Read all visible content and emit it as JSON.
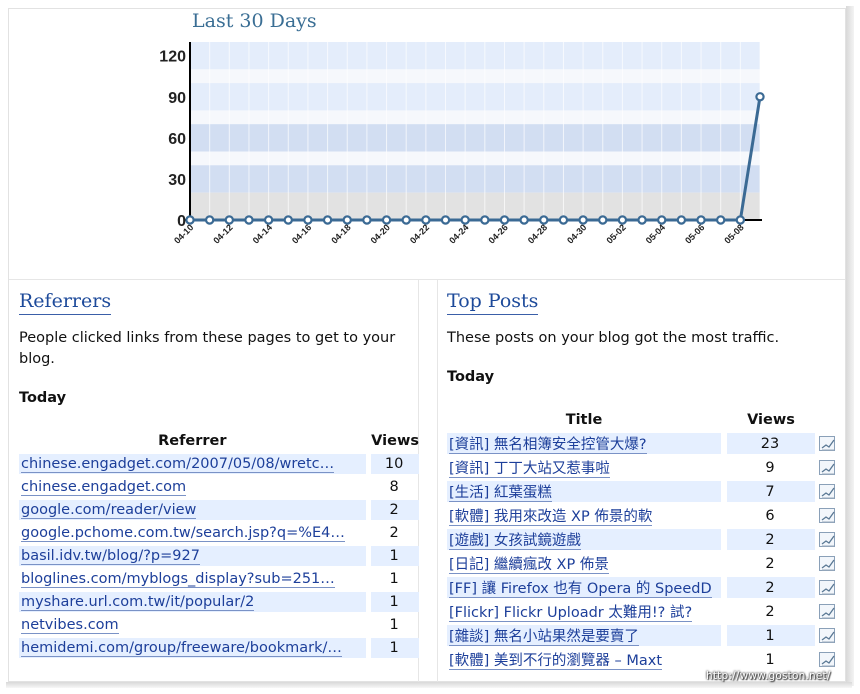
{
  "chart_data": {
    "type": "line",
    "title": "Last 30 Days",
    "xlabel": "",
    "ylabel": "",
    "ylim": [
      0,
      130
    ],
    "yticks": [
      0,
      30,
      60,
      90,
      120
    ],
    "x_tick_labels": [
      "04-10",
      "04-12",
      "04-14",
      "04-16",
      "04-18",
      "04-20",
      "04-22",
      "04-24",
      "04-26",
      "04-28",
      "04-30",
      "05-02",
      "05-04",
      "05-06",
      "05-08"
    ],
    "x": [
      "04-10",
      "04-11",
      "04-12",
      "04-13",
      "04-14",
      "04-15",
      "04-16",
      "04-17",
      "04-18",
      "04-19",
      "04-20",
      "04-21",
      "04-22",
      "04-23",
      "04-24",
      "04-25",
      "04-26",
      "04-27",
      "04-28",
      "04-29",
      "04-30",
      "05-01",
      "05-02",
      "05-03",
      "05-04",
      "05-05",
      "05-06",
      "05-07",
      "05-08",
      "05-09"
    ],
    "values": [
      0,
      0,
      0,
      0,
      0,
      0,
      0,
      0,
      0,
      0,
      0,
      0,
      0,
      0,
      0,
      0,
      0,
      0,
      0,
      0,
      0,
      0,
      0,
      0,
      0,
      0,
      0,
      0,
      0,
      90
    ],
    "grid": true,
    "colors": {
      "line": "#3b6a94",
      "marker_fill": "#ffffff",
      "band_light": "#e4edfb",
      "band_dark": "#d2def2",
      "band_white": "#f6f8fc"
    }
  },
  "referrers": {
    "title": "Referrers",
    "description": "People clicked links from these pages to get to your blog.",
    "period": "Today",
    "columns": {
      "referrer": "Referrer",
      "views": "Views"
    },
    "rows": [
      {
        "referrer": "chinese.engadget.com/2007/05/08/wretc…",
        "views": "10"
      },
      {
        "referrer": "chinese.engadget.com",
        "views": "8"
      },
      {
        "referrer": "google.com/reader/view",
        "views": "2"
      },
      {
        "referrer": "google.pchome.com.tw/search.jsp?q=%E4…",
        "views": "2"
      },
      {
        "referrer": "basil.idv.tw/blog/?p=927",
        "views": "1"
      },
      {
        "referrer": "bloglines.com/myblogs_display?sub=251…",
        "views": "1"
      },
      {
        "referrer": "myshare.url.com.tw/it/popular/2",
        "views": "1"
      },
      {
        "referrer": "netvibes.com",
        "views": "1"
      },
      {
        "referrer": "hemidemi.com/group/freeware/bookmark/…",
        "views": "1"
      }
    ]
  },
  "top_posts": {
    "title": "Top Posts",
    "description": "These posts on your blog got the most traffic.",
    "period": "Today",
    "columns": {
      "title": "Title",
      "views": "Views"
    },
    "icon": "sparkline-chart-icon",
    "rows": [
      {
        "title": "[資訊] 無名相簿安全控管大爆?",
        "views": "23"
      },
      {
        "title": "[資訊] 丁丁大站又惹事啦",
        "views": "9"
      },
      {
        "title": "[生活] 紅葉蛋糕",
        "views": "7"
      },
      {
        "title": "[軟體] 我用來改造 XP 佈景的軟",
        "views": "6"
      },
      {
        "title": "[遊戲] 女孩試鏡遊戲",
        "views": "2"
      },
      {
        "title": "[日記] 繼續瘋改 XP 佈景",
        "views": "2"
      },
      {
        "title": "[FF] 讓 Firefox 也有 Opera 的 SpeedD",
        "views": "2"
      },
      {
        "title": "[Flickr] Flickr Uploadr 太難用!? 試?",
        "views": "2"
      },
      {
        "title": "[雜談] 無名小站果然是要賣了",
        "views": "1"
      },
      {
        "title": "[軟體] 美到不行的瀏覽器 – Maxt",
        "views": "1"
      }
    ]
  },
  "watermark": "http://www.goston.net/"
}
